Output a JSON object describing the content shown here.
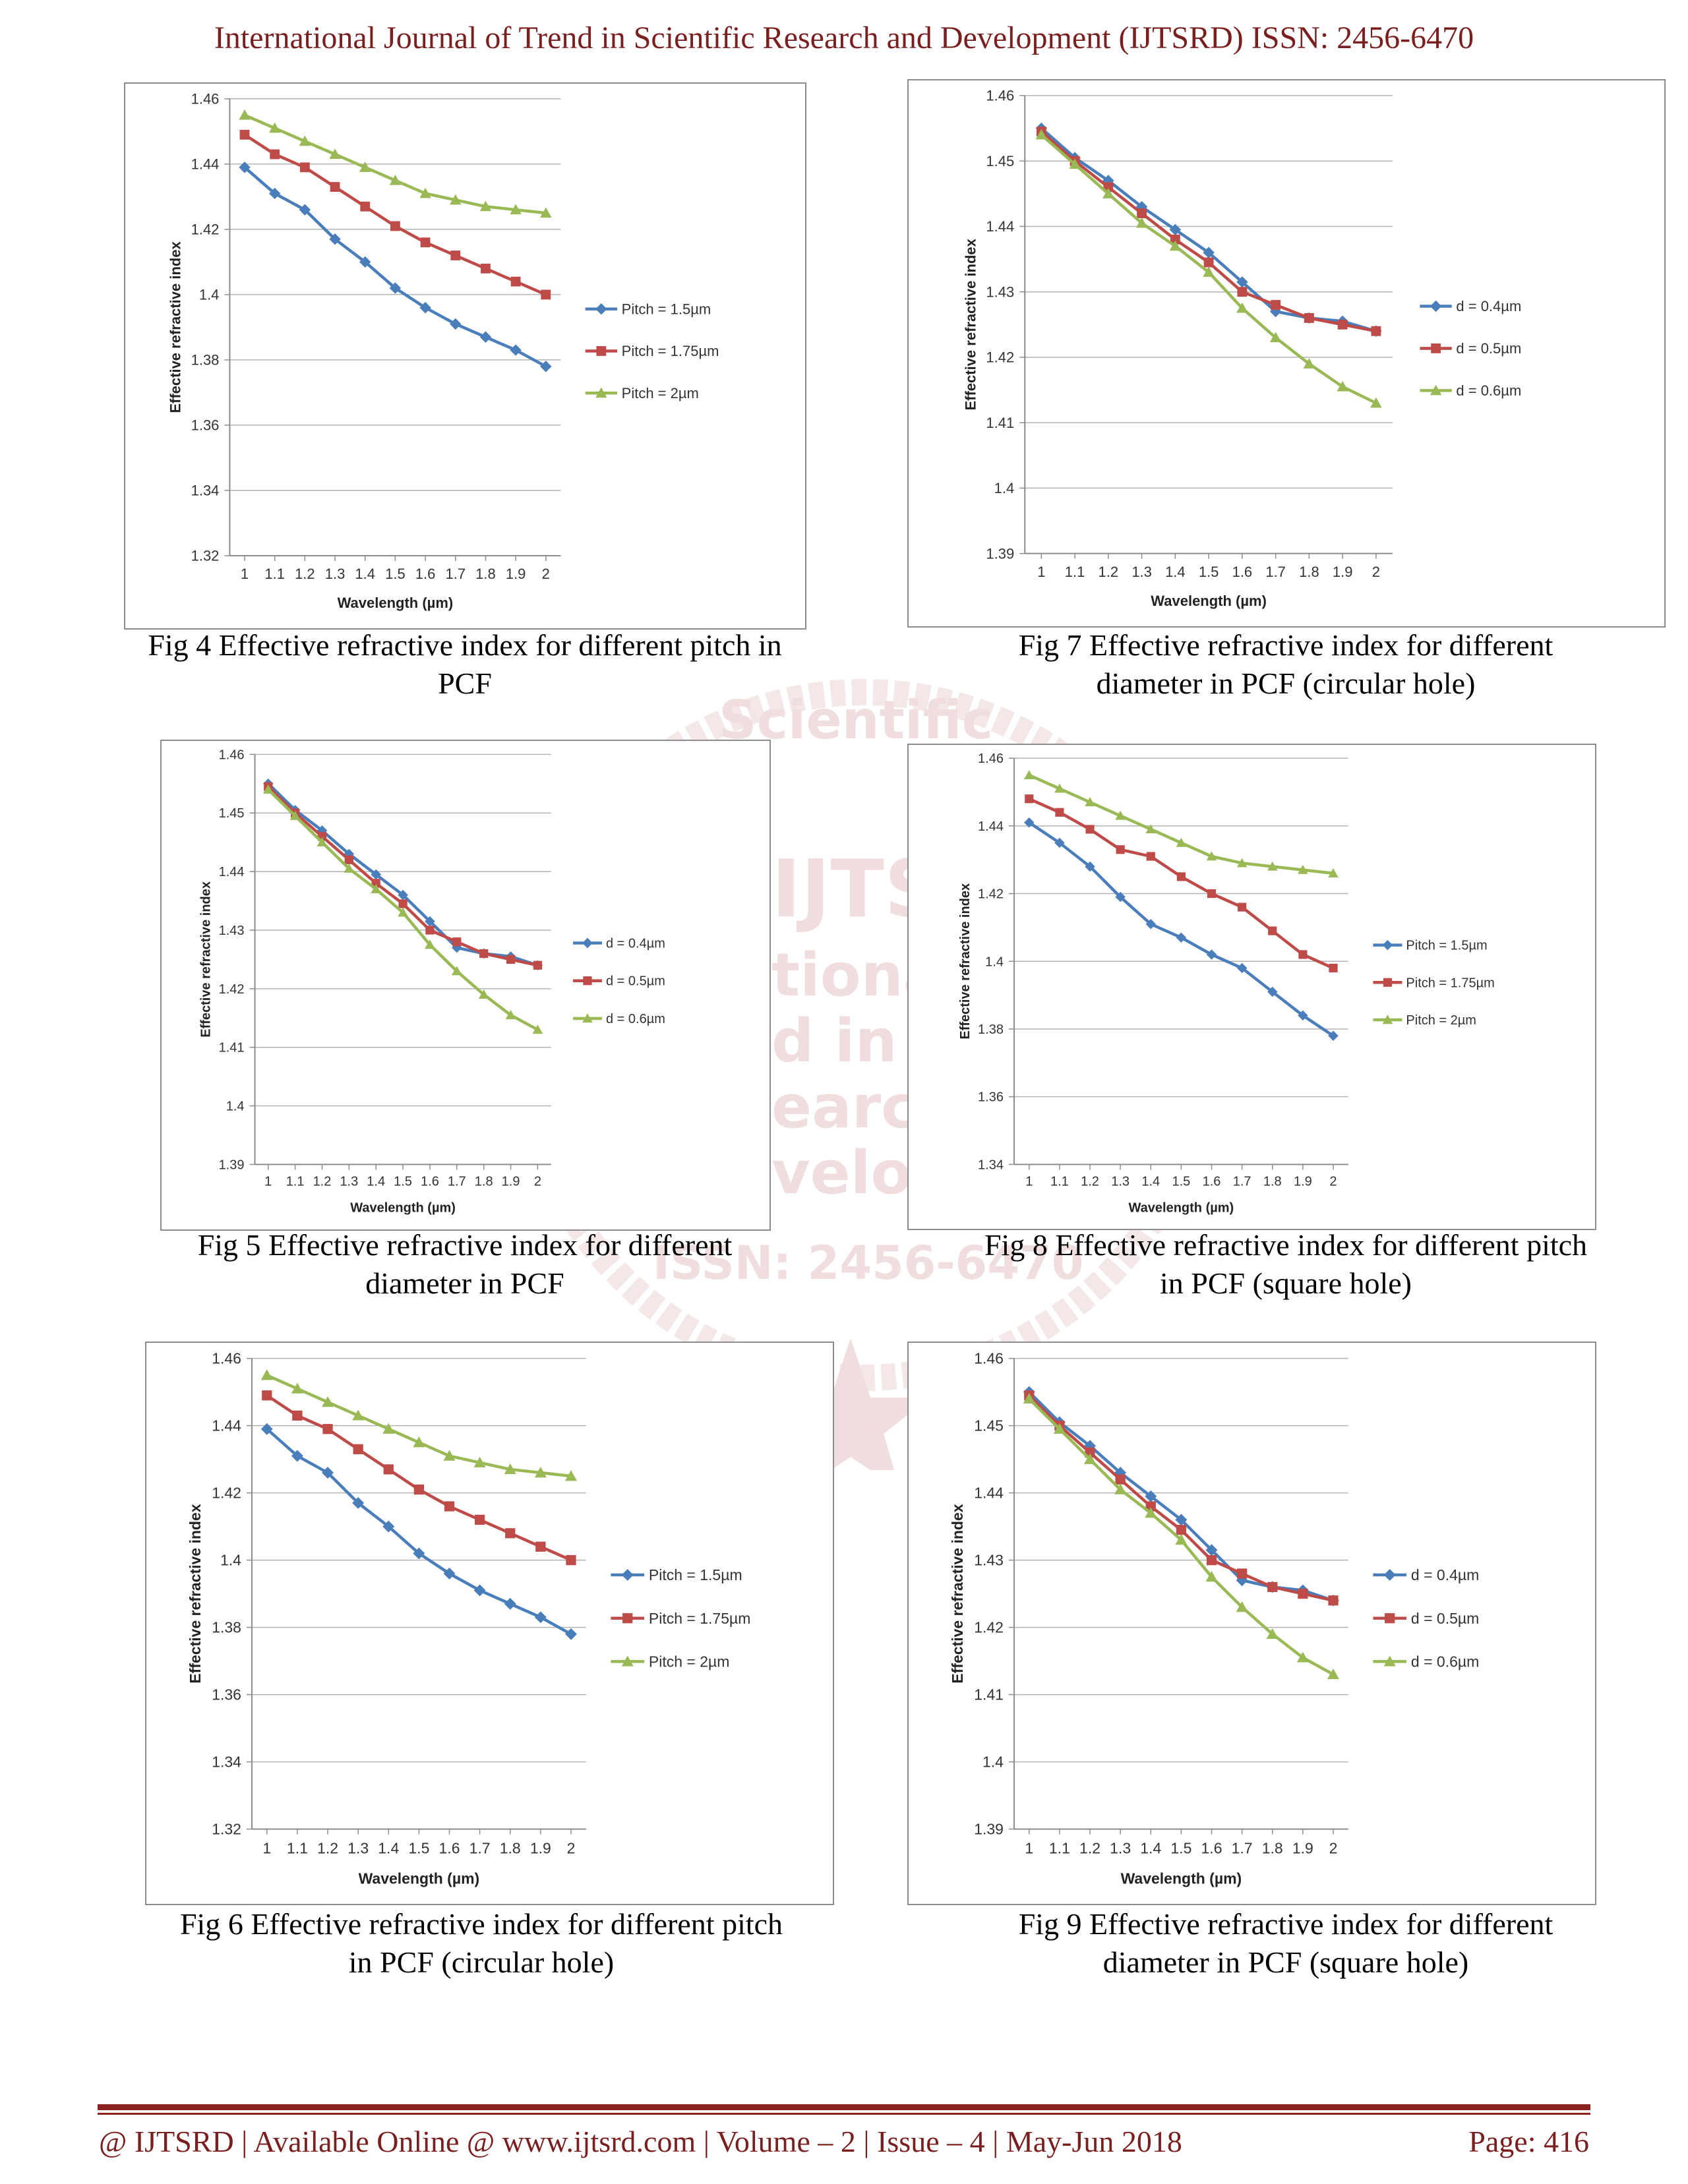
{
  "header": {
    "title": "International Journal of Trend in Scientific Research and Development (IJTSRD) ISSN: 2456-6470"
  },
  "watermark": {
    "line1": "Scientific",
    "line2": "IJTSR",
    "line3": "tional",
    "line4": "d in S",
    "line5": "earch",
    "line6": "velopr",
    "line7": "ISSN: 2456-6470"
  },
  "figures": [
    {
      "caption_line1": "Fig 4 Effective refractive index for different pitch in",
      "caption_line2": "PCF",
      "chart_data": {
        "type": "line",
        "x": [
          1,
          1.1,
          1.2,
          1.3,
          1.4,
          1.5,
          1.6,
          1.7,
          1.8,
          1.9,
          2
        ],
        "x_tick_labels": [
          "1",
          "1.1",
          "1.2",
          "1.3",
          "1.4",
          "1.5",
          "1.6",
          "1.7",
          "1.8",
          "1.9",
          "2"
        ],
        "ylim": [
          1.32,
          1.46
        ],
        "y_ticks": [
          1.32,
          1.34,
          1.36,
          1.38,
          1.4,
          1.42,
          1.44,
          1.46
        ],
        "y_tick_labels": [
          "1.32",
          "1.34",
          "1.36",
          "1.38",
          "1.4",
          "1.42",
          "1.44",
          "1.46"
        ],
        "xlabel": "Wavelength (µm)",
        "ylabel": "Effective refractive index",
        "legend": "right",
        "series": [
          {
            "name": "Pitch = 1.5µm",
            "color": "#4a7ebb",
            "marker": "diamond",
            "values": [
              1.439,
              1.431,
              1.426,
              1.417,
              1.41,
              1.402,
              1.396,
              1.391,
              1.387,
              1.383,
              1.378
            ]
          },
          {
            "name": "Pitch = 1.75µm",
            "color": "#be4b48",
            "marker": "square",
            "values": [
              1.449,
              1.443,
              1.439,
              1.433,
              1.427,
              1.421,
              1.416,
              1.412,
              1.408,
              1.404,
              1.4
            ]
          },
          {
            "name": "Pitch = 2µm",
            "color": "#98b954",
            "marker": "triangle",
            "values": [
              1.455,
              1.451,
              1.447,
              1.443,
              1.439,
              1.435,
              1.431,
              1.429,
              1.427,
              1.426,
              1.425
            ]
          }
        ]
      }
    },
    {
      "caption_line1": "Fig 7 Effective refractive index for different",
      "caption_line2": "diameter in PCF (circular hole)",
      "chart_data": {
        "type": "line",
        "x": [
          1,
          1.1,
          1.2,
          1.3,
          1.4,
          1.5,
          1.6,
          1.7,
          1.8,
          1.9,
          2
        ],
        "x_tick_labels": [
          "1",
          "1.1",
          "1.2",
          "1.3",
          "1.4",
          "1.5",
          "1.6",
          "1.7",
          "1.8",
          "1.9",
          "2"
        ],
        "ylim": [
          1.39,
          1.46
        ],
        "y_ticks": [
          1.39,
          1.4,
          1.41,
          1.42,
          1.43,
          1.44,
          1.45,
          1.46
        ],
        "y_tick_labels": [
          "1.39",
          "1.4",
          "1.41",
          "1.42",
          "1.43",
          "1.44",
          "1.45",
          "1.46"
        ],
        "xlabel": "Wavelength (µm)",
        "ylabel": "Effective refractive index",
        "legend": "right",
        "series": [
          {
            "name": "d = 0.4µm",
            "color": "#4a7ebb",
            "marker": "diamond",
            "values": [
              1.455,
              1.4505,
              1.447,
              1.443,
              1.4395,
              1.436,
              1.4315,
              1.427,
              1.426,
              1.4255,
              1.424
            ]
          },
          {
            "name": "d = 0.5µm",
            "color": "#be4b48",
            "marker": "square",
            "values": [
              1.4545,
              1.45,
              1.446,
              1.442,
              1.438,
              1.4345,
              1.43,
              1.428,
              1.426,
              1.425,
              1.424
            ]
          },
          {
            "name": "d = 0.6µm",
            "color": "#98b954",
            "marker": "triangle",
            "values": [
              1.454,
              1.4495,
              1.445,
              1.4405,
              1.437,
              1.433,
              1.4275,
              1.423,
              1.419,
              1.4155,
              1.413
            ]
          }
        ]
      }
    },
    {
      "caption_line1": "Fig 5 Effective refractive index for different",
      "caption_line2": "diameter in PCF",
      "chart_data": {
        "type": "line",
        "x": [
          1,
          1.1,
          1.2,
          1.3,
          1.4,
          1.5,
          1.6,
          1.7,
          1.8,
          1.9,
          2
        ],
        "x_tick_labels": [
          "1",
          "1.1",
          "1.2",
          "1.3",
          "1.4",
          "1.5",
          "1.6",
          "1.7",
          "1.8",
          "1.9",
          "2"
        ],
        "ylim": [
          1.39,
          1.46
        ],
        "y_ticks": [
          1.39,
          1.4,
          1.41,
          1.42,
          1.43,
          1.44,
          1.45,
          1.46
        ],
        "y_tick_labels": [
          "1.39",
          "1.4",
          "1.41",
          "1.42",
          "1.43",
          "1.44",
          "1.45",
          "1.46"
        ],
        "xlabel": "Wavelength (µm)",
        "ylabel": "Effective refractive index",
        "legend": "right",
        "series": [
          {
            "name": "d = 0.4µm",
            "color": "#4a7ebb",
            "marker": "diamond",
            "values": [
              1.455,
              1.4505,
              1.447,
              1.443,
              1.4395,
              1.436,
              1.4315,
              1.427,
              1.426,
              1.4255,
              1.424
            ]
          },
          {
            "name": "d = 0.5µm",
            "color": "#be4b48",
            "marker": "square",
            "values": [
              1.4545,
              1.45,
              1.446,
              1.442,
              1.438,
              1.4345,
              1.43,
              1.428,
              1.426,
              1.425,
              1.424
            ]
          },
          {
            "name": "d = 0.6µm",
            "color": "#98b954",
            "marker": "triangle",
            "values": [
              1.454,
              1.4495,
              1.445,
              1.4405,
              1.437,
              1.433,
              1.4275,
              1.423,
              1.419,
              1.4155,
              1.413
            ]
          }
        ]
      }
    },
    {
      "caption_line1": "Fig 8 Effective refractive index for different pitch",
      "caption_line2": "in PCF (square hole)",
      "chart_data": {
        "type": "line",
        "x": [
          1,
          1.1,
          1.2,
          1.3,
          1.4,
          1.5,
          1.6,
          1.7,
          1.8,
          1.9,
          2
        ],
        "x_tick_labels": [
          "1",
          "1.1",
          "1.2",
          "1.3",
          "1.4",
          "1.5",
          "1.6",
          "1.7",
          "1.8",
          "1.9",
          "2"
        ],
        "ylim": [
          1.34,
          1.46
        ],
        "y_ticks": [
          1.34,
          1.36,
          1.38,
          1.4,
          1.42,
          1.44,
          1.46
        ],
        "y_tick_labels": [
          "1.34",
          "1.36",
          "1.38",
          "1.4",
          "1.42",
          "1.44",
          "1.46"
        ],
        "xlabel": "Wavelength (µm)",
        "ylabel": "Effective refractive index",
        "legend": "right",
        "series": [
          {
            "name": "Pitch = 1.5µm",
            "color": "#4a7ebb",
            "marker": "diamond",
            "values": [
              1.441,
              1.435,
              1.428,
              1.419,
              1.411,
              1.407,
              1.402,
              1.398,
              1.391,
              1.384,
              1.378
            ]
          },
          {
            "name": "Pitch = 1.75µm",
            "color": "#be4b48",
            "marker": "square",
            "values": [
              1.448,
              1.444,
              1.439,
              1.433,
              1.431,
              1.425,
              1.42,
              1.416,
              1.409,
              1.402,
              1.398
            ]
          },
          {
            "name": "Pitch = 2µm",
            "color": "#98b954",
            "marker": "triangle",
            "values": [
              1.455,
              1.451,
              1.447,
              1.443,
              1.439,
              1.435,
              1.431,
              1.429,
              1.428,
              1.427,
              1.426
            ]
          }
        ]
      }
    },
    {
      "caption_line1": "Fig 6 Effective refractive index for different pitch",
      "caption_line2": "in PCF (circular hole)",
      "chart_data": {
        "type": "line",
        "x": [
          1,
          1.1,
          1.2,
          1.3,
          1.4,
          1.5,
          1.6,
          1.7,
          1.8,
          1.9,
          2
        ],
        "x_tick_labels": [
          "1",
          "1.1",
          "1.2",
          "1.3",
          "1.4",
          "1.5",
          "1.6",
          "1.7",
          "1.8",
          "1.9",
          "2"
        ],
        "ylim": [
          1.32,
          1.46
        ],
        "y_ticks": [
          1.32,
          1.34,
          1.36,
          1.38,
          1.4,
          1.42,
          1.44,
          1.46
        ],
        "y_tick_labels": [
          "1.32",
          "1.34",
          "1.36",
          "1.38",
          "1.4",
          "1.42",
          "1.44",
          "1.46"
        ],
        "xlabel": "Wavelength (µm)",
        "ylabel": "Effective refractive index",
        "legend": "right",
        "series": [
          {
            "name": "Pitch = 1.5µm",
            "color": "#4a7ebb",
            "marker": "diamond",
            "values": [
              1.439,
              1.431,
              1.426,
              1.417,
              1.41,
              1.402,
              1.396,
              1.391,
              1.387,
              1.383,
              1.378
            ]
          },
          {
            "name": "Pitch = 1.75µm",
            "color": "#be4b48",
            "marker": "square",
            "values": [
              1.449,
              1.443,
              1.439,
              1.433,
              1.427,
              1.421,
              1.416,
              1.412,
              1.408,
              1.404,
              1.4
            ]
          },
          {
            "name": "Pitch = 2µm",
            "color": "#98b954",
            "marker": "triangle",
            "values": [
              1.455,
              1.451,
              1.447,
              1.443,
              1.439,
              1.435,
              1.431,
              1.429,
              1.427,
              1.426,
              1.425
            ]
          }
        ]
      }
    },
    {
      "caption_line1": "Fig 9 Effective refractive index for different",
      "caption_line2": "diameter in PCF (square hole)",
      "chart_data": {
        "type": "line",
        "x": [
          1,
          1.1,
          1.2,
          1.3,
          1.4,
          1.5,
          1.6,
          1.7,
          1.8,
          1.9,
          2
        ],
        "x_tick_labels": [
          "1",
          "1.1",
          "1.2",
          "1.3",
          "1.4",
          "1.5",
          "1.6",
          "1.7",
          "1.8",
          "1.9",
          "2"
        ],
        "ylim": [
          1.39,
          1.46
        ],
        "y_ticks": [
          1.39,
          1.4,
          1.41,
          1.42,
          1.43,
          1.44,
          1.45,
          1.46
        ],
        "y_tick_labels": [
          "1.39",
          "1.4",
          "1.41",
          "1.42",
          "1.43",
          "1.44",
          "1.45",
          "1.46"
        ],
        "xlabel": "Wavelength (µm)",
        "ylabel": "Effective refractive index",
        "legend": "right",
        "series": [
          {
            "name": "d = 0.4µm",
            "color": "#4a7ebb",
            "marker": "diamond",
            "values": [
              1.455,
              1.4505,
              1.447,
              1.443,
              1.4395,
              1.436,
              1.4315,
              1.427,
              1.426,
              1.4255,
              1.424
            ]
          },
          {
            "name": "d = 0.5µm",
            "color": "#be4b48",
            "marker": "square",
            "values": [
              1.4545,
              1.45,
              1.446,
              1.442,
              1.438,
              1.4345,
              1.43,
              1.428,
              1.426,
              1.425,
              1.424
            ]
          },
          {
            "name": "d = 0.6µm",
            "color": "#98b954",
            "marker": "triangle",
            "values": [
              1.454,
              1.4495,
              1.445,
              1.4405,
              1.437,
              1.433,
              1.4275,
              1.423,
              1.419,
              1.4155,
              1.413
            ]
          }
        ]
      }
    }
  ],
  "footer": {
    "left": "@ IJTSRD  |  Available Online @ www.ijtsrd.com  |  Volume – 2  |  Issue – 4  | May-Jun 2018",
    "right": "Page: 416"
  }
}
